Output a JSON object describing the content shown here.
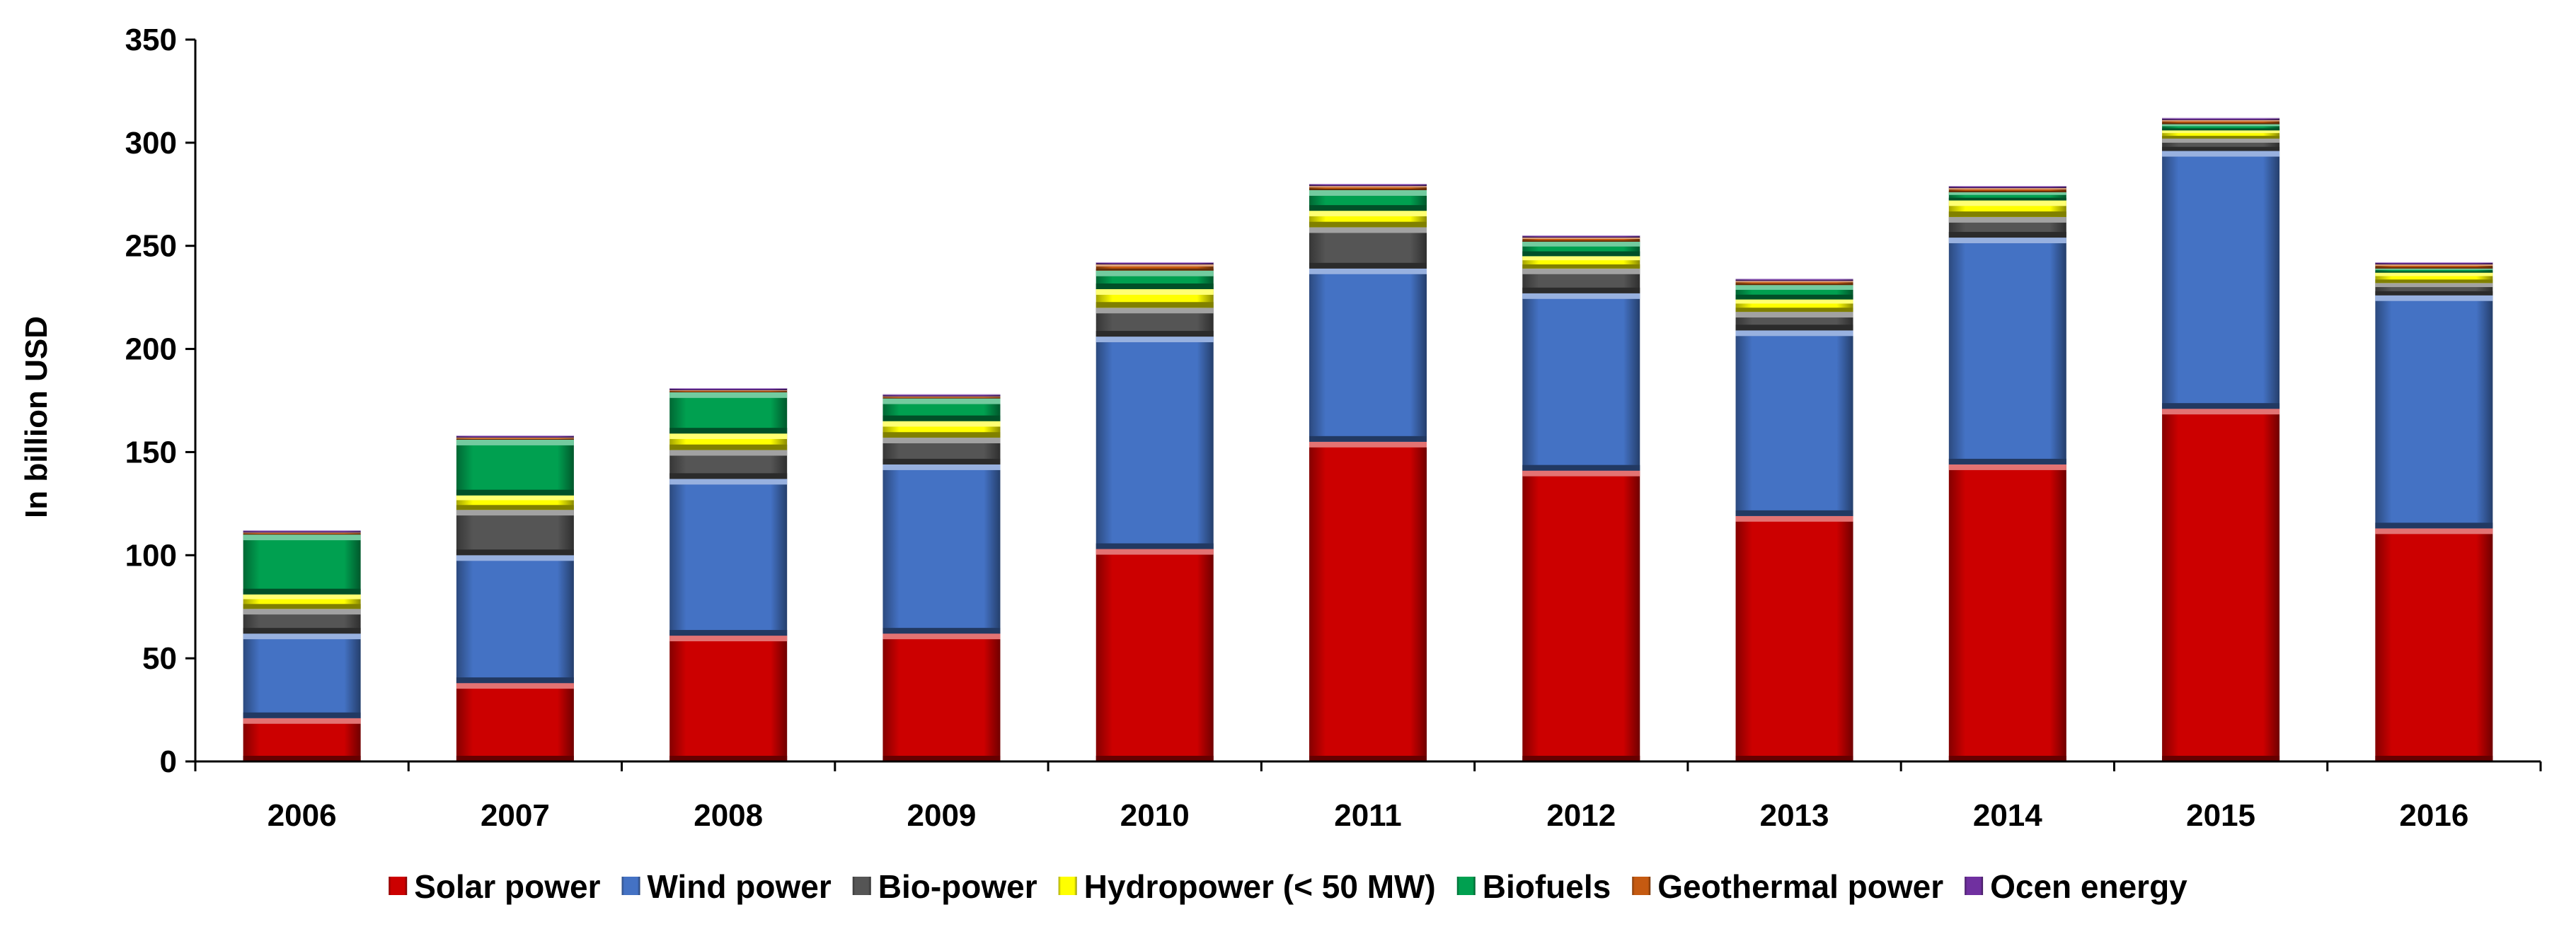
{
  "chart_data": {
    "type": "bar",
    "stacked": true,
    "title": "",
    "xlabel": "",
    "ylabel": "In billion USD",
    "ylim": [
      0,
      350
    ],
    "yticks": [
      0,
      50,
      100,
      150,
      200,
      250,
      300,
      350
    ],
    "categories": [
      "2006",
      "2007",
      "2008",
      "2009",
      "2010",
      "2011",
      "2012",
      "2013",
      "2014",
      "2015",
      "2016"
    ],
    "grid": false,
    "legend_position": "bottom",
    "series": [
      {
        "name": "Solar power",
        "color": "#cc0000",
        "values": [
          21,
          38,
          61,
          62,
          103,
          155,
          141,
          119,
          144,
          171,
          113
        ]
      },
      {
        "name": "Wind power",
        "color": "#4472c4",
        "values": [
          41,
          62,
          76,
          82,
          103,
          84,
          86,
          90,
          110,
          125,
          113
        ]
      },
      {
        "name": "Bio-power",
        "color": "#555555",
        "values": [
          12,
          22,
          14,
          13,
          14,
          20,
          12,
          9,
          10,
          6,
          6
        ]
      },
      {
        "name": "Hydropower (< 50 MW)",
        "color": "#ffff00",
        "values": [
          7,
          7,
          8,
          8,
          9,
          8,
          6,
          6,
          8,
          4,
          5
        ]
      },
      {
        "name": "Biofuels",
        "color": "#00a050",
        "values": [
          29,
          27,
          20,
          11,
          9,
          10,
          7,
          7,
          4,
          3,
          2
        ]
      },
      {
        "name": "Geothermal power",
        "color": "#c55a11",
        "values": [
          1,
          1,
          1,
          1,
          3,
          2,
          2,
          2,
          2,
          2,
          2
        ]
      },
      {
        "name": "Ocen energy",
        "color": "#7030a0",
        "values": [
          1,
          1,
          1,
          1,
          1,
          1,
          1,
          1,
          1,
          1,
          1
        ]
      }
    ]
  }
}
